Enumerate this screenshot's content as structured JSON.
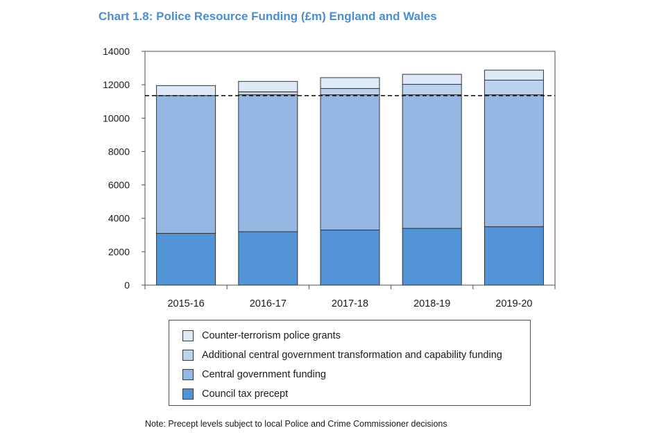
{
  "chart_data": {
    "type": "bar",
    "stacked": true,
    "title": "Chart 1.8: Police Resource Funding (£m) England and Wales",
    "xlabel": "",
    "ylabel": "",
    "ylim": [
      0,
      14000
    ],
    "yticks": [
      0,
      2000,
      4000,
      6000,
      8000,
      10000,
      12000,
      14000
    ],
    "categories": [
      "2015-16",
      "2016-17",
      "2017-18",
      "2018-19",
      "2019-20"
    ],
    "series": [
      {
        "name": "Council tax precept",
        "color": "#5294d6",
        "values": [
          3100,
          3200,
          3300,
          3400,
          3500
        ]
      },
      {
        "name": "Central government funding",
        "color": "#94b7e3",
        "values": [
          8250,
          8200,
          8100,
          8000,
          7900
        ]
      },
      {
        "name": "Additional central government transformation and capability funding",
        "color": "#bcd3ee",
        "values": [
          0,
          175,
          375,
          625,
          875
        ]
      },
      {
        "name": "Counter-terrorism police grants",
        "color": "#dde9f7",
        "values": [
          600,
          625,
          650,
          600,
          600
        ]
      }
    ],
    "reference_line": {
      "value": 11350,
      "style": "dashed"
    },
    "legend_order": [
      3,
      2,
      1,
      0
    ],
    "note": "Note: Precept levels subject to local Police and Crime Commissioner decisions"
  }
}
